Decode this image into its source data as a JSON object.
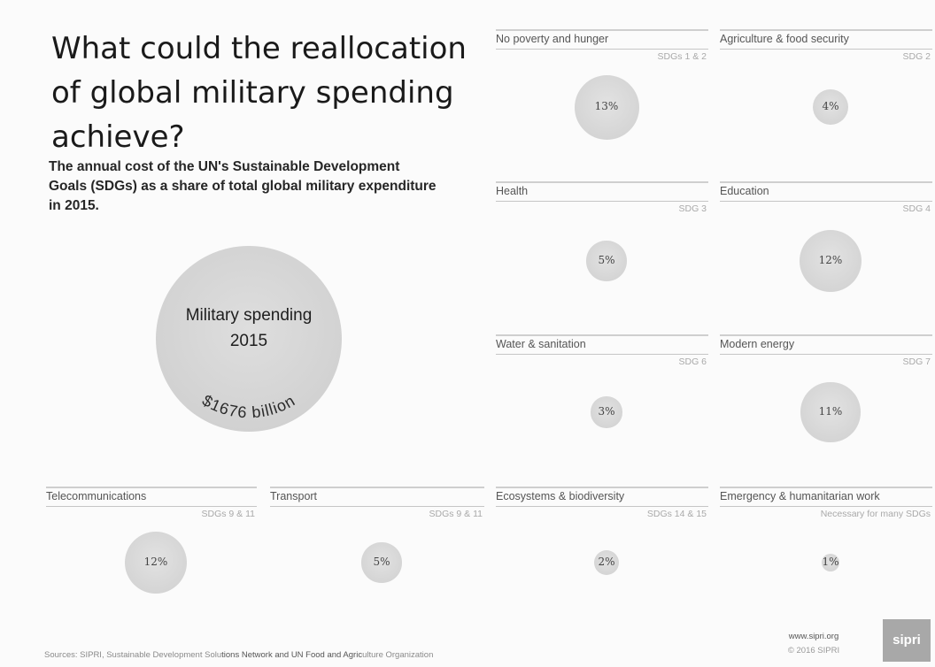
{
  "title": "What could the reallocation of global military spending achieve?",
  "subtitle": "The annual cost of the UN's Sustainable Development Goals (SDGs) as a share of total global military expenditure in 2015.",
  "chart_data": {
    "type": "bubble",
    "total": {
      "label_line1": "Military spending",
      "label_line2": "2015",
      "amount": "$1676 billion",
      "value_billion_usd": 1676
    },
    "categories": [
      {
        "name": "No poverty and hunger",
        "sdg": "SDGs 1 & 2",
        "label": "13%",
        "value": 13
      },
      {
        "name": "Agriculture & food security",
        "sdg": "SDG 2",
        "label": "4%",
        "value": 4
      },
      {
        "name": "Health",
        "sdg": "SDG 3",
        "label": "5%",
        "value": 5
      },
      {
        "name": "Education",
        "sdg": "SDG 4",
        "label": "12%",
        "value": 12
      },
      {
        "name": "Water & sanitation",
        "sdg": "SDG 6",
        "label": "3%",
        "value": 3
      },
      {
        "name": "Modern energy",
        "sdg": "SDG 7",
        "label": "11%",
        "value": 11
      },
      {
        "name": "Telecommunications",
        "sdg": "SDGs 9 & 11",
        "label": "12%",
        "value": 12
      },
      {
        "name": "Transport",
        "sdg": "SDGs 9 & 11",
        "label": "5%",
        "value": 5
      },
      {
        "name": "Ecosystems & biodiversity",
        "sdg": "SDGs 14 & 15",
        "label": "2%",
        "value": 2
      },
      {
        "name": "Emergency & humanitarian work",
        "sdg": "Necessary for many SDGs",
        "label": "1%",
        "value": 1
      }
    ]
  },
  "footer": {
    "sources_prefix": "Sources: SIPRI, Sustainable Development Solu",
    "sources_dark": "tions Network and UN Food and Agric",
    "sources_suffix": "ulture Organization",
    "website": "www.sipri.org",
    "copyright": "© 2016 SIPRI",
    "logo_text": "sipri"
  }
}
